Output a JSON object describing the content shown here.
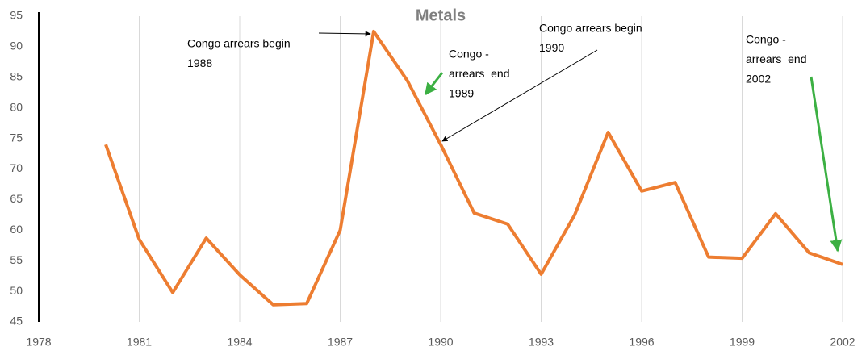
{
  "chart_data": {
    "type": "line",
    "title": "Metals",
    "x": [
      1980,
      1981,
      1982,
      1983,
      1984,
      1985,
      1986,
      1987,
      1988,
      1989,
      1990,
      1991,
      1992,
      1993,
      1994,
      1995,
      1996,
      1997,
      1998,
      1999,
      2000,
      2001,
      2002
    ],
    "series": [
      {
        "name": "Metals",
        "color": "#ed7d31",
        "values": [
          74,
          58.5,
          49.8,
          58.7,
          52.7,
          47.8,
          48,
          60,
          92.5,
          84.5,
          74,
          62.8,
          61,
          52.8,
          62.5,
          76,
          66.4,
          67.8,
          55.6,
          55.4,
          62.7,
          56.3,
          54.4
        ]
      }
    ],
    "xlim": [
      1978,
      2002
    ],
    "xticks": [
      1978,
      1981,
      1984,
      1987,
      1990,
      1993,
      1996,
      1999,
      2002
    ],
    "ylim": [
      45,
      95
    ],
    "yticks": [
      45,
      50,
      55,
      60,
      65,
      70,
      75,
      80,
      85,
      90,
      95
    ],
    "grid": true,
    "annotations": [
      {
        "lines": [
          "Congo arrears begin",
          "1988"
        ]
      },
      {
        "lines": [
          "Congo -",
          "arrears  end",
          "1989"
        ]
      },
      {
        "lines": [
          "Congo arrears begin",
          "1990"
        ]
      },
      {
        "lines": [
          "Congo -",
          "arrears  end",
          "2002"
        ]
      }
    ]
  }
}
